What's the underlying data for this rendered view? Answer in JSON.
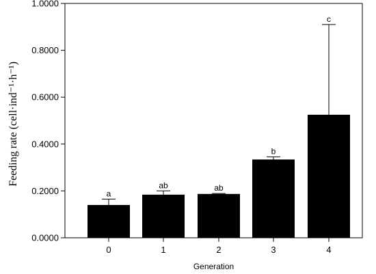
{
  "chart_data": {
    "type": "bar",
    "title": "",
    "xlabel": "Generation",
    "ylabel": "Feeding rate (cell·ind⁻¹·h⁻¹)",
    "categories": [
      "0",
      "1",
      "2",
      "3",
      "4"
    ],
    "values": [
      0.14,
      0.184,
      0.187,
      0.334,
      0.525
    ],
    "error_upper": [
      0.165,
      0.2,
      0.189,
      0.345,
      0.91
    ],
    "significance_labels": [
      "a",
      "ab",
      "ab",
      "b",
      "c"
    ],
    "ylim": [
      0,
      1.0
    ],
    "yticks": [
      "0.0000",
      "0.2000",
      "0.4000",
      "0.6000",
      "0.8000",
      "1.0000"
    ],
    "grid": false,
    "bar_color": "#000000"
  }
}
